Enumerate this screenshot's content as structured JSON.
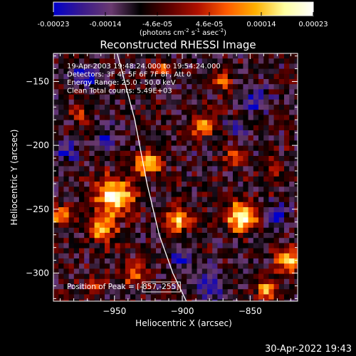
{
  "colorbar": {
    "ticks": [
      "-0.00023",
      "-0.00014",
      "-4.6e-05",
      "4.6e-05",
      "0.00014",
      "0.00023"
    ],
    "unit_prefix": "(photons cm",
    "unit_exp1": "-2",
    "unit_mid": " s",
    "unit_exp2": "-1",
    "unit_mid2": " asec",
    "unit_exp3": "-2",
    "unit_suffix": ")",
    "stops": [
      "#0000cc",
      "#3a1a8c",
      "#6a3a70",
      "#000000",
      "#5a0000",
      "#b01000",
      "#ff5a00",
      "#ffb000",
      "#ffffa0",
      "#ffffff"
    ]
  },
  "chart_data": {
    "type": "heatmap",
    "title": "Reconstructed RHESSI Image",
    "xlabel": "Heliocentric X (arcsec)",
    "ylabel": "Heliocentric Y (arcsec)",
    "xlim": [
      -995,
      -815
    ],
    "ylim": [
      -322,
      -128
    ],
    "xticks": [
      -950,
      -900,
      -850
    ],
    "yticks": [
      -150,
      -200,
      -250,
      -300
    ],
    "xtick_labels": [
      "−950",
      "−900",
      "−850"
    ],
    "ytick_labels": [
      "−150",
      "−200",
      "−250",
      "−300"
    ],
    "annotations": [
      "19-Apr-2003 19:48:24.000 to 19:54:24.000",
      "Detectors: 3F 4F 5F 6F 7F 8F, Att 0",
      "Energy Range: 25.0 - 50.0 keV",
      "Clean    Total counts: 5.49E+03"
    ],
    "peak_label": "Position of Peak = [-857,-255]",
    "peak": [
      -857,
      -255
    ],
    "limb_curve": [
      [
        -948,
        -128
      ],
      [
        -935,
        -180
      ],
      [
        -926,
        -230
      ],
      [
        -917,
        -270
      ],
      [
        -907,
        -300
      ],
      [
        -897,
        -322
      ]
    ]
  },
  "footer": {
    "timestamp": "30-Apr-2022 19:43"
  }
}
